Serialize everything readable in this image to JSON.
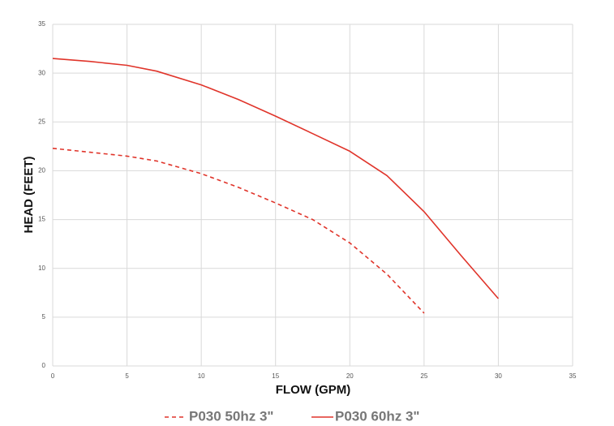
{
  "chart_data": {
    "type": "line",
    "x_label": "FLOW (GPM)",
    "y_label": "HEAD (FEET)",
    "x": [
      0,
      2.5,
      5,
      7,
      10,
      12.5,
      15,
      17.5,
      20,
      22.5,
      25,
      27.5,
      30
    ],
    "series": [
      {
        "name": "P030 50hz 3\"",
        "color": "#e0342a",
        "dashed": true,
        "values": [
          22.3,
          21.9,
          21.5,
          21.0,
          19.7,
          18.3,
          16.7,
          15.0,
          12.6,
          9.4,
          5.4,
          null,
          null
        ]
      },
      {
        "name": "P030 60hz 3\"",
        "color": "#e0342a",
        "dashed": false,
        "values": [
          31.5,
          31.2,
          30.8,
          30.2,
          28.8,
          27.3,
          25.6,
          23.8,
          22.0,
          19.5,
          15.8,
          11.3,
          6.9
        ]
      }
    ],
    "xlim": [
      0,
      35
    ],
    "xticks": [
      0,
      5,
      10,
      15,
      20,
      25,
      30,
      35
    ],
    "ylim": [
      0,
      35
    ],
    "yticks": [
      0,
      5,
      10,
      15,
      20,
      25,
      30,
      35
    ],
    "grid": true,
    "legend": "bottom"
  }
}
